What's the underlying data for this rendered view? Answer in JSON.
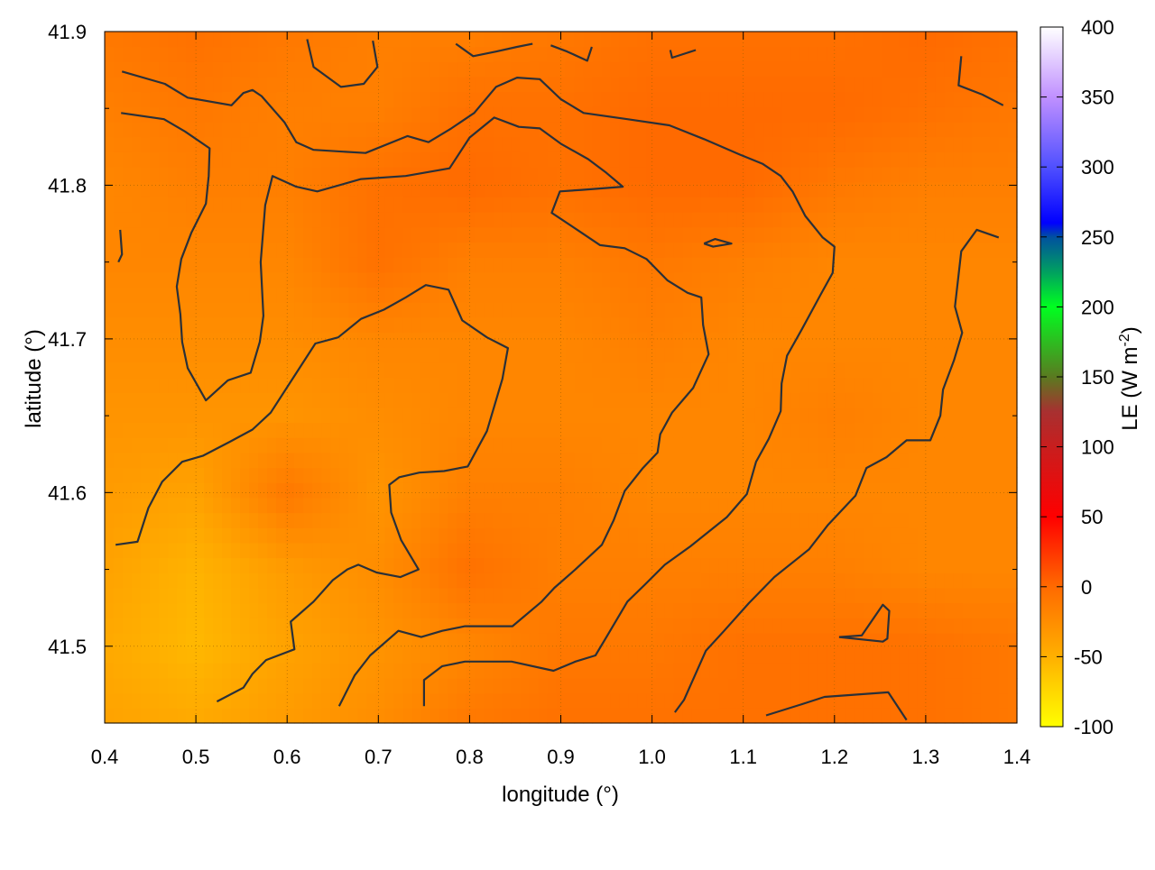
{
  "chart_data": {
    "type": "heatmap",
    "title": "",
    "xlabel": "longitude (°)",
    "ylabel": "latitude (°)",
    "colorbar_label": "LE (W m",
    "colorbar_label_sup": "-2",
    "colorbar_label_close": ")",
    "xlim": [
      0.4,
      1.4
    ],
    "ylim": [
      41.45,
      41.9
    ],
    "clim": [
      -100,
      400
    ],
    "x_ticks": [
      "0.4",
      "0.5",
      "0.6",
      "0.7",
      "0.8",
      "0.9",
      "1.0",
      "1.1",
      "1.2",
      "1.3",
      "1.4"
    ],
    "y_ticks": [
      "41.5",
      "41.6",
      "41.7",
      "41.8",
      "41.9"
    ],
    "colorbar_ticks": [
      "-100",
      "-50",
      "0",
      "50",
      "100",
      "150",
      "200",
      "250",
      "300",
      "350",
      "400"
    ],
    "grid": true,
    "colormap": [
      {
        "value": -100,
        "color": "#ffff00"
      },
      {
        "value": -50,
        "color": "#ffb000"
      },
      {
        "value": 0,
        "color": "#ff6a00"
      },
      {
        "value": 50,
        "color": "#ff0000"
      },
      {
        "value": 100,
        "color": "#c81e1e"
      },
      {
        "value": 125,
        "color": "#a83030"
      },
      {
        "value": 150,
        "color": "#5a7a20"
      },
      {
        "value": 200,
        "color": "#00ff20"
      },
      {
        "value": 225,
        "color": "#00a060"
      },
      {
        "value": 250,
        "color": "#0050a0"
      },
      {
        "value": 260,
        "color": "#0000ff"
      },
      {
        "value": 300,
        "color": "#5050ff"
      },
      {
        "value": 350,
        "color": "#c090ff"
      },
      {
        "value": 400,
        "color": "#ffffff"
      }
    ],
    "grid_lon": [
      0.4,
      0.5,
      0.6,
      0.7,
      0.8,
      0.9,
      1.0,
      1.1,
      1.2,
      1.3,
      1.4
    ],
    "grid_lat": [
      41.9,
      41.85,
      41.8,
      41.75,
      41.7,
      41.65,
      41.6,
      41.55,
      41.5,
      41.45
    ],
    "values": [
      [
        -10,
        -5,
        -10,
        -15,
        -15,
        -10,
        -5,
        -5,
        -5,
        0,
        -5
      ],
      [
        -15,
        -10,
        -15,
        -15,
        -5,
        -5,
        0,
        0,
        0,
        -5,
        -10
      ],
      [
        -20,
        -15,
        -15,
        -5,
        0,
        -5,
        0,
        0,
        -10,
        -15,
        -15
      ],
      [
        -20,
        -20,
        -20,
        -5,
        -15,
        -15,
        -10,
        -15,
        -20,
        -20,
        -20
      ],
      [
        -25,
        -25,
        -25,
        -20,
        -20,
        -20,
        -15,
        -20,
        -20,
        -20,
        -20
      ],
      [
        -30,
        -30,
        -30,
        -25,
        -20,
        -20,
        -20,
        -20,
        -15,
        -20,
        -20
      ],
      [
        -35,
        -40,
        -10,
        -30,
        -15,
        -15,
        -20,
        -20,
        -20,
        -20,
        -20
      ],
      [
        -40,
        -52,
        -35,
        -25,
        -5,
        -15,
        -15,
        -15,
        -15,
        -20,
        -20
      ],
      [
        -45,
        -55,
        -40,
        -30,
        -20,
        -10,
        -10,
        -5,
        -5,
        -5,
        -10
      ],
      [
        -40,
        -45,
        -35,
        -25,
        -10,
        -5,
        -5,
        -5,
        -5,
        -5,
        -10
      ]
    ],
    "contours": [
      [
        [
          0.412,
          41.566
        ],
        [
          0.436,
          41.568
        ],
        [
          0.448,
          41.59
        ],
        [
          0.463,
          41.607
        ],
        [
          0.485,
          41.62
        ],
        [
          0.508,
          41.624
        ],
        [
          0.537,
          41.633
        ],
        [
          0.562,
          41.641
        ],
        [
          0.582,
          41.652
        ],
        [
          0.607,
          41.675
        ],
        [
          0.631,
          41.697
        ],
        [
          0.656,
          41.701
        ],
        [
          0.681,
          41.713
        ],
        [
          0.706,
          41.719
        ],
        [
          0.73,
          41.727
        ],
        [
          0.752,
          41.735
        ],
        [
          0.777,
          41.732
        ],
        [
          0.792,
          41.712
        ],
        [
          0.819,
          41.701
        ],
        [
          0.842,
          41.694
        ],
        [
          0.836,
          41.674
        ],
        [
          0.819,
          41.64
        ],
        [
          0.798,
          41.617
        ],
        [
          0.772,
          41.614
        ],
        [
          0.745,
          41.613
        ],
        [
          0.723,
          41.61
        ],
        [
          0.712,
          41.605
        ],
        [
          0.714,
          41.587
        ],
        [
          0.725,
          41.569
        ],
        [
          0.744,
          41.55
        ],
        [
          0.724,
          41.545
        ],
        [
          0.698,
          41.548
        ],
        [
          0.678,
          41.553
        ],
        [
          0.666,
          41.55
        ],
        [
          0.65,
          41.543
        ],
        [
          0.629,
          41.529
        ],
        [
          0.604,
          41.516
        ],
        [
          0.608,
          41.498
        ],
        [
          0.577,
          41.491
        ],
        [
          0.562,
          41.482
        ],
        [
          0.552,
          41.473
        ],
        [
          0.523,
          41.464
        ]
      ],
      [
        [
          0.418,
          41.847
        ],
        [
          0.465,
          41.843
        ],
        [
          0.488,
          41.835
        ],
        [
          0.515,
          41.824
        ],
        [
          0.514,
          41.806
        ],
        [
          0.511,
          41.788
        ],
        [
          0.495,
          41.769
        ],
        [
          0.484,
          41.752
        ],
        [
          0.479,
          41.734
        ],
        [
          0.483,
          41.716
        ],
        [
          0.485,
          41.698
        ],
        [
          0.491,
          41.681
        ],
        [
          0.511,
          41.66
        ],
        [
          0.535,
          41.673
        ],
        [
          0.56,
          41.678
        ],
        [
          0.57,
          41.698
        ],
        [
          0.574,
          41.715
        ],
        [
          0.571,
          41.75
        ],
        [
          0.576,
          41.787
        ],
        [
          0.584,
          41.806
        ],
        [
          0.61,
          41.799
        ],
        [
          0.633,
          41.796
        ],
        [
          0.681,
          41.804
        ],
        [
          0.73,
          41.806
        ],
        [
          0.778,
          41.811
        ],
        [
          0.8,
          41.831
        ],
        [
          0.827,
          41.844
        ],
        [
          0.854,
          41.838
        ],
        [
          0.877,
          41.837
        ],
        [
          0.9,
          41.827
        ],
        [
          0.93,
          41.817
        ],
        [
          0.95,
          41.808
        ],
        [
          0.968,
          41.799
        ],
        [
          0.923,
          41.797
        ],
        [
          0.899,
          41.796
        ],
        [
          0.89,
          41.782
        ],
        [
          0.918,
          41.771
        ],
        [
          0.943,
          41.761
        ],
        [
          0.97,
          41.759
        ],
        [
          0.994,
          41.752
        ],
        [
          1.017,
          41.738
        ],
        [
          1.039,
          41.73
        ],
        [
          1.054,
          41.727
        ],
        [
          1.056,
          41.709
        ],
        [
          1.062,
          41.69
        ],
        [
          1.045,
          41.668
        ],
        [
          1.022,
          41.652
        ],
        [
          1.009,
          41.638
        ],
        [
          1.006,
          41.626
        ],
        [
          0.99,
          41.616
        ],
        [
          0.97,
          41.601
        ],
        [
          0.958,
          41.582
        ],
        [
          0.945,
          41.566
        ],
        [
          0.916,
          41.55
        ],
        [
          0.893,
          41.538
        ],
        [
          0.879,
          41.529
        ],
        [
          0.847,
          41.513
        ],
        [
          0.795,
          41.513
        ],
        [
          0.77,
          41.51
        ],
        [
          0.747,
          41.506
        ],
        [
          0.722,
          41.51
        ],
        [
          0.691,
          41.494
        ],
        [
          0.674,
          41.481
        ],
        [
          0.657,
          41.461
        ]
      ],
      [
        [
          0.419,
          41.874
        ],
        [
          0.466,
          41.866
        ],
        [
          0.491,
          41.857
        ],
        [
          0.539,
          41.852
        ],
        [
          0.552,
          41.86
        ],
        [
          0.562,
          41.862
        ],
        [
          0.572,
          41.858
        ],
        [
          0.597,
          41.841
        ],
        [
          0.61,
          41.828
        ],
        [
          0.629,
          41.823
        ],
        [
          0.686,
          41.821
        ],
        [
          0.732,
          41.832
        ],
        [
          0.755,
          41.828
        ],
        [
          0.78,
          41.837
        ],
        [
          0.805,
          41.847
        ],
        [
          0.829,
          41.864
        ],
        [
          0.852,
          41.87
        ],
        [
          0.877,
          41.869
        ],
        [
          0.9,
          41.856
        ],
        [
          0.925,
          41.847
        ],
        [
          0.973,
          41.843
        ],
        [
          1.019,
          41.839
        ],
        [
          1.057,
          41.83
        ],
        [
          1.096,
          41.82
        ],
        [
          1.121,
          41.814
        ],
        [
          1.141,
          41.806
        ],
        [
          1.154,
          41.796
        ],
        [
          1.168,
          41.78
        ],
        [
          1.187,
          41.766
        ],
        [
          1.2,
          41.76
        ],
        [
          1.198,
          41.743
        ],
        [
          1.185,
          41.729
        ],
        [
          1.164,
          41.706
        ],
        [
          1.148,
          41.689
        ],
        [
          1.142,
          41.671
        ],
        [
          1.141,
          41.653
        ],
        [
          1.128,
          41.635
        ],
        [
          1.114,
          41.62
        ],
        [
          1.104,
          41.599
        ],
        [
          1.082,
          41.584
        ],
        [
          1.042,
          41.565
        ],
        [
          1.014,
          41.553
        ],
        [
          0.992,
          41.54
        ],
        [
          0.973,
          41.529
        ],
        [
          0.95,
          41.506
        ],
        [
          0.938,
          41.494
        ],
        [
          0.916,
          41.49
        ],
        [
          0.892,
          41.484
        ],
        [
          0.846,
          41.49
        ],
        [
          0.795,
          41.49
        ],
        [
          0.77,
          41.487
        ],
        [
          0.75,
          41.478
        ],
        [
          0.75,
          41.461
        ]
      ],
      [
        [
          1.38,
          41.766
        ],
        [
          1.356,
          41.771
        ],
        [
          1.339,
          41.757
        ],
        [
          1.332,
          41.721
        ],
        [
          1.34,
          41.704
        ],
        [
          1.331,
          41.686
        ],
        [
          1.319,
          41.667
        ],
        [
          1.316,
          41.65
        ],
        [
          1.305,
          41.634
        ],
        [
          1.279,
          41.634
        ],
        [
          1.257,
          41.623
        ],
        [
          1.235,
          41.616
        ],
        [
          1.223,
          41.598
        ],
        [
          1.193,
          41.579
        ],
        [
          1.172,
          41.563
        ],
        [
          1.134,
          41.545
        ],
        [
          1.106,
          41.528
        ],
        [
          1.079,
          41.51
        ],
        [
          1.059,
          41.497
        ],
        [
          1.047,
          41.481
        ],
        [
          1.035,
          41.465
        ],
        [
          1.025,
          41.457
        ]
      ],
      [
        [
          1.125,
          41.455
        ],
        [
          1.163,
          41.462
        ],
        [
          1.189,
          41.467
        ],
        [
          1.259,
          41.47
        ],
        [
          1.279,
          41.452
        ]
      ],
      [
        [
          1.205,
          41.506
        ],
        [
          1.23,
          41.507
        ],
        [
          1.253,
          41.527
        ],
        [
          1.26,
          41.523
        ],
        [
          1.258,
          41.505
        ],
        [
          1.253,
          41.503
        ],
        [
          1.205,
          41.506
        ]
      ],
      [
        [
          0.622,
          41.895
        ],
        [
          0.629,
          41.877
        ],
        [
          0.659,
          41.864
        ],
        [
          0.684,
          41.866
        ],
        [
          0.699,
          41.877
        ],
        [
          0.694,
          41.894
        ]
      ],
      [
        [
          0.785,
          41.892
        ],
        [
          0.804,
          41.884
        ],
        [
          0.829,
          41.887
        ],
        [
          0.852,
          41.89
        ],
        [
          0.869,
          41.892
        ]
      ],
      [
        [
          0.889,
          41.891
        ],
        [
          0.907,
          41.887
        ],
        [
          0.929,
          41.881
        ],
        [
          0.934,
          41.89
        ]
      ],
      [
        [
          1.02,
          41.888
        ],
        [
          1.022,
          41.883
        ],
        [
          1.048,
          41.888
        ]
      ],
      [
        [
          1.339,
          41.884
        ],
        [
          1.336,
          41.865
        ],
        [
          1.362,
          41.859
        ],
        [
          1.385,
          41.852
        ]
      ],
      [
        [
          0.417,
          41.771
        ],
        [
          0.419,
          41.755
        ],
        [
          0.415,
          41.75
        ]
      ],
      [
        [
          1.057,
          41.762
        ],
        [
          1.069,
          41.765
        ],
        [
          1.087,
          41.762
        ],
        [
          1.067,
          41.76
        ],
        [
          1.057,
          41.762
        ]
      ]
    ],
    "contour_color": "#2a3038"
  }
}
